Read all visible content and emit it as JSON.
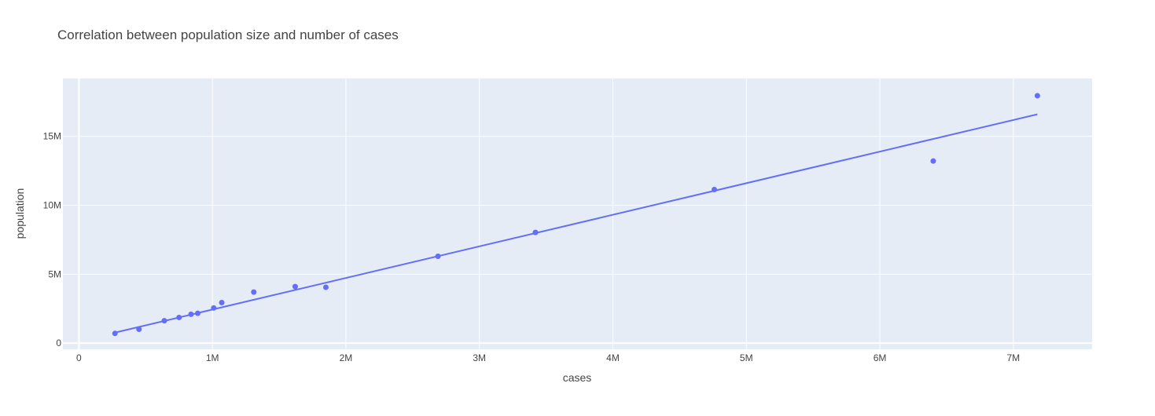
{
  "chart_data": {
    "type": "scatter",
    "title": "Correlation between population size and number of cases",
    "xlabel": "cases",
    "ylabel": "population",
    "xlim": [
      -120000,
      7590000
    ],
    "ylim": [
      -450000,
      19200000
    ],
    "x_ticks": [
      {
        "value": 0,
        "label": "0"
      },
      {
        "value": 1000000,
        "label": "1M"
      },
      {
        "value": 2000000,
        "label": "2M"
      },
      {
        "value": 3000000,
        "label": "3M"
      },
      {
        "value": 4000000,
        "label": "4M"
      },
      {
        "value": 5000000,
        "label": "5M"
      },
      {
        "value": 6000000,
        "label": "6M"
      },
      {
        "value": 7000000,
        "label": "7M"
      }
    ],
    "y_ticks": [
      {
        "value": 0,
        "label": "0"
      },
      {
        "value": 5000000,
        "label": "5M"
      },
      {
        "value": 10000000,
        "label": "10M"
      },
      {
        "value": 15000000,
        "label": "15M"
      }
    ],
    "grid": true,
    "legend": "none",
    "colors": {
      "plot_bg": "#e5ecf6",
      "grid": "#ffffff",
      "marker": "#636efa",
      "text": "#444444",
      "title": "#444444"
    },
    "series": [
      {
        "kind": "markers",
        "x": [
          270000,
          450000,
          640000,
          750000,
          840000,
          890000,
          1010000,
          1070000,
          1310000,
          1620000,
          1850000,
          2690000,
          3420000,
          4760000,
          6400000,
          7180000
        ],
        "y": [
          700000,
          1000000,
          1620000,
          1860000,
          2090000,
          2160000,
          2550000,
          2940000,
          3700000,
          4100000,
          4050000,
          6300000,
          8030000,
          11140000,
          13210000,
          17950000
        ]
      },
      {
        "kind": "line",
        "x": [
          270000,
          7180000
        ],
        "y": [
          760000,
          16600000
        ]
      }
    ]
  }
}
